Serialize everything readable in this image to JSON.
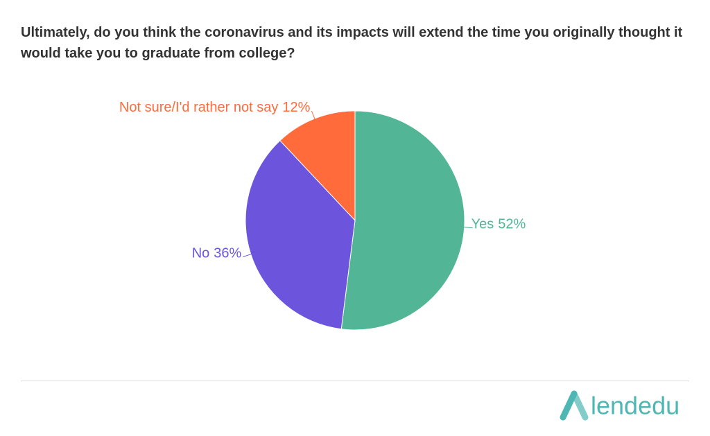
{
  "chart_data": {
    "type": "pie",
    "title": "Ultimately, do you think the coronavirus and its impacts will extend the time you originally thought it would take you to graduate from college?",
    "categories": [
      "Yes",
      "No",
      "Not sure/I'd rather not say"
    ],
    "values": [
      52,
      36,
      12
    ],
    "value_labels": [
      "52%",
      "36%",
      "12%"
    ],
    "colors": [
      "#52b596",
      "#6c55dc",
      "#ff6b3b"
    ]
  },
  "logo": "lendedu"
}
